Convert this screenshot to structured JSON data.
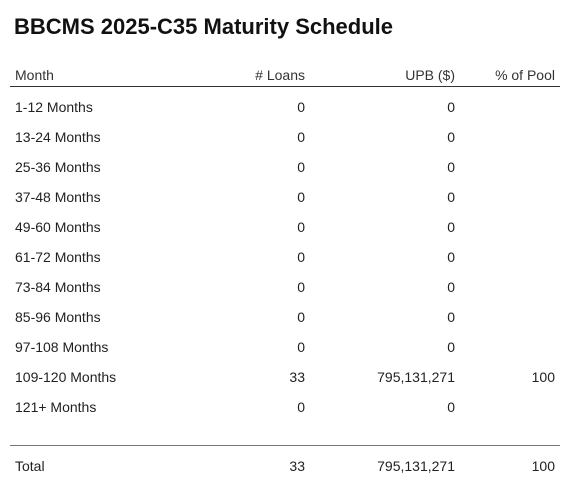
{
  "title": "BBCMS 2025-C35 Maturity Schedule",
  "columns": {
    "month": "Month",
    "loans": "# Loans",
    "upb": "UPB ($)",
    "pct": "% of Pool"
  },
  "rows": [
    {
      "month": "1-12 Months",
      "loans": "0",
      "upb": "0",
      "pct": ""
    },
    {
      "month": "13-24 Months",
      "loans": "0",
      "upb": "0",
      "pct": ""
    },
    {
      "month": "25-36 Months",
      "loans": "0",
      "upb": "0",
      "pct": ""
    },
    {
      "month": "37-48 Months",
      "loans": "0",
      "upb": "0",
      "pct": ""
    },
    {
      "month": "49-60 Months",
      "loans": "0",
      "upb": "0",
      "pct": ""
    },
    {
      "month": "61-72 Months",
      "loans": "0",
      "upb": "0",
      "pct": ""
    },
    {
      "month": "73-84 Months",
      "loans": "0",
      "upb": "0",
      "pct": ""
    },
    {
      "month": "85-96 Months",
      "loans": "0",
      "upb": "0",
      "pct": ""
    },
    {
      "month": "97-108 Months",
      "loans": "0",
      "upb": "0",
      "pct": ""
    },
    {
      "month": "109-120 Months",
      "loans": "33",
      "upb": "795,131,271",
      "pct": "100"
    },
    {
      "month": "121+ Months",
      "loans": "0",
      "upb": "0",
      "pct": ""
    }
  ],
  "total": {
    "label": "Total",
    "loans": "33",
    "upb": "795,131,271",
    "pct": "100"
  }
}
